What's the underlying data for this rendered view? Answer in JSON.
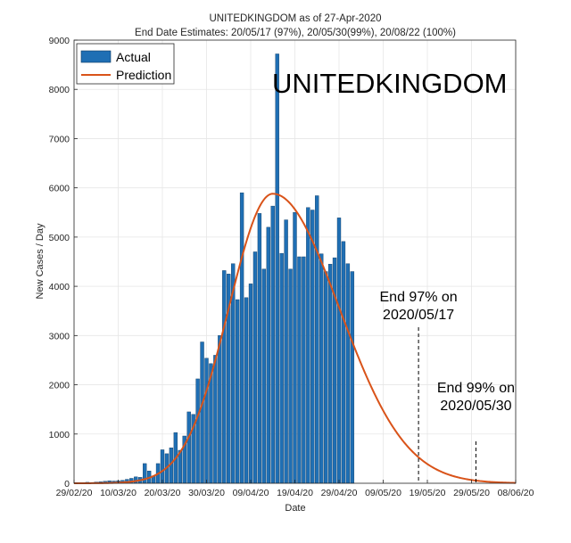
{
  "chart_data": {
    "type": "bar",
    "title": "UNITEDKINGDOM as of 27-Apr-2020",
    "subtitle": "End Date Estimates: 20/05/17 (97%), 20/05/30(99%), 20/08/22 (100%)",
    "country_label": "UNITEDKINGDOM",
    "xlabel": "Date",
    "ylabel": "New Cases / Day",
    "ylim": [
      0,
      9000
    ],
    "yticks": [
      0,
      1000,
      2000,
      3000,
      4000,
      5000,
      6000,
      7000,
      8000,
      9000
    ],
    "xlim": [
      "2020-02-29",
      "2020-06-08"
    ],
    "xticks": [
      "29/02/20",
      "10/03/20",
      "20/03/20",
      "30/03/20",
      "09/04/20",
      "19/04/20",
      "29/04/20",
      "09/05/20",
      "19/05/20",
      "29/05/20",
      "08/06/20"
    ],
    "grid": true,
    "legend": {
      "position": "top-left",
      "entries": [
        "Actual",
        "Prediction"
      ]
    },
    "series": [
      {
        "name": "Actual",
        "type": "bar",
        "color": "#1f6fb4",
        "x_start": "2020-03-01",
        "values": [
          0,
          10,
          20,
          15,
          25,
          30,
          40,
          50,
          45,
          50,
          60,
          80,
          100,
          130,
          120,
          400,
          250,
          150,
          400,
          680,
          600,
          720,
          1030,
          670,
          960,
          1450,
          1400,
          2120,
          2870,
          2540,
          2430,
          2600,
          3000,
          4320,
          4250,
          4460,
          3730,
          5900,
          3770,
          4050,
          4700,
          5480,
          4350,
          5200,
          5630,
          8720,
          4670,
          5350,
          4350,
          5500,
          4600,
          4600,
          5600,
          5550,
          5840,
          4660,
          4300,
          4450,
          4580,
          5390,
          4910,
          4460,
          4300
        ]
      },
      {
        "name": "Prediction",
        "type": "line",
        "color": "#d95319",
        "model": {
          "peak_date": "2020-04-14",
          "peak_value": 5880,
          "sigma_before_days": 9.94,
          "sigma_after_days": 15.03
        }
      }
    ],
    "annotations": [
      {
        "date": "2020-05-17",
        "line1": "End 97% on",
        "line2": "2020/05/17"
      },
      {
        "date": "2020-05-30",
        "line1": "End 99% on",
        "line2": "2020/05/30"
      }
    ]
  }
}
